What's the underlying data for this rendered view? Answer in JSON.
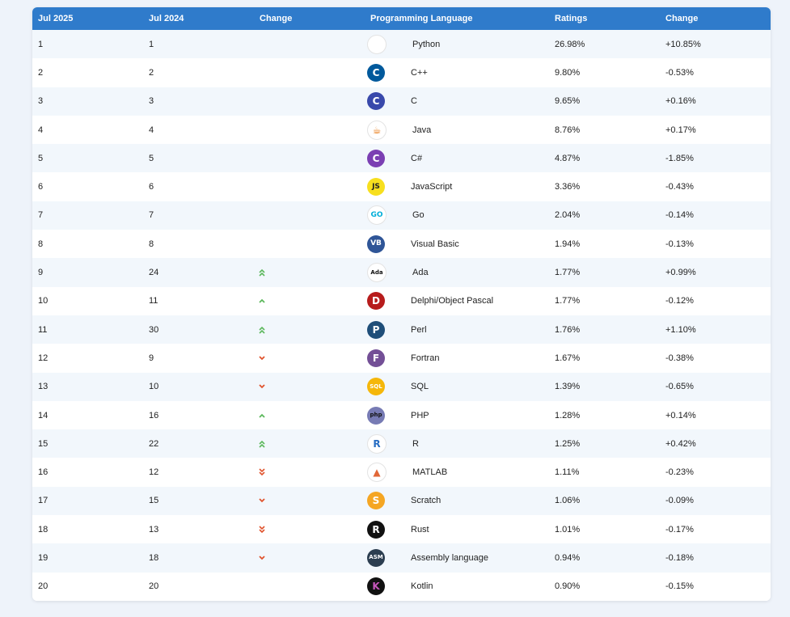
{
  "headers": [
    "Jul 2025",
    "Jul 2024",
    "Change",
    "Programming Language",
    "Ratings",
    "Change"
  ],
  "rows": [
    {
      "rank": "1",
      "prev": "1",
      "trend": "none",
      "lang": "Python",
      "rating": "26.98%",
      "change": "+10.85%",
      "logo": {
        "name": "python-logo-icon",
        "glyph": "",
        "bg": "#ffffff",
        "fg": "#3472a6"
      }
    },
    {
      "rank": "2",
      "prev": "2",
      "trend": "none",
      "lang": "C++",
      "rating": "9.80%",
      "change": "-0.53%",
      "logo": {
        "name": "cplusplus-logo-icon",
        "glyph": "C",
        "bg": "#00599c",
        "fg": "#ffffff"
      }
    },
    {
      "rank": "3",
      "prev": "3",
      "trend": "none",
      "lang": "C",
      "rating": "9.65%",
      "change": "+0.16%",
      "logo": {
        "name": "c-logo-icon",
        "glyph": "C",
        "bg": "#3949ab",
        "fg": "#ffffff"
      }
    },
    {
      "rank": "4",
      "prev": "4",
      "trend": "none",
      "lang": "Java",
      "rating": "8.76%",
      "change": "+0.17%",
      "logo": {
        "name": "java-logo-icon",
        "glyph": "☕",
        "bg": "#ffffff",
        "fg": "#e76f00"
      }
    },
    {
      "rank": "5",
      "prev": "5",
      "trend": "none",
      "lang": "C#",
      "rating": "4.87%",
      "change": "-1.85%",
      "logo": {
        "name": "csharp-logo-icon",
        "glyph": "C",
        "bg": "#7b3fb3",
        "fg": "#ffffff"
      }
    },
    {
      "rank": "6",
      "prev": "6",
      "trend": "none",
      "lang": "JavaScript",
      "rating": "3.36%",
      "change": "-0.43%",
      "logo": {
        "name": "javascript-logo-icon",
        "glyph": "JS",
        "bg": "#f7df1e",
        "fg": "#222222"
      }
    },
    {
      "rank": "7",
      "prev": "7",
      "trend": "none",
      "lang": "Go",
      "rating": "2.04%",
      "change": "-0.14%",
      "logo": {
        "name": "go-logo-icon",
        "glyph": "GO",
        "bg": "#ffffff",
        "fg": "#00add8"
      }
    },
    {
      "rank": "8",
      "prev": "8",
      "trend": "none",
      "lang": "Visual Basic",
      "rating": "1.94%",
      "change": "-0.13%",
      "logo": {
        "name": "visual-basic-logo-icon",
        "glyph": "VB",
        "bg": "#2f5597",
        "fg": "#ffffff"
      }
    },
    {
      "rank": "9",
      "prev": "24",
      "trend": "up2",
      "lang": "Ada",
      "rating": "1.77%",
      "change": "+0.99%",
      "logo": {
        "name": "ada-logo-icon",
        "glyph": "Ada",
        "bg": "#ffffff",
        "fg": "#111111"
      }
    },
    {
      "rank": "10",
      "prev": "11",
      "trend": "up",
      "lang": "Delphi/Object Pascal",
      "rating": "1.77%",
      "change": "-0.12%",
      "logo": {
        "name": "delphi-logo-icon",
        "glyph": "D",
        "bg": "#b71c1c",
        "fg": "#ffffff"
      }
    },
    {
      "rank": "11",
      "prev": "30",
      "trend": "up2",
      "lang": "Perl",
      "rating": "1.76%",
      "change": "+1.10%",
      "logo": {
        "name": "perl-logo-icon",
        "glyph": "P",
        "bg": "#1f4e79",
        "fg": "#ffffff"
      }
    },
    {
      "rank": "12",
      "prev": "9",
      "trend": "down",
      "lang": "Fortran",
      "rating": "1.67%",
      "change": "-0.38%",
      "logo": {
        "name": "fortran-logo-icon",
        "glyph": "F",
        "bg": "#734f96",
        "fg": "#ffffff"
      }
    },
    {
      "rank": "13",
      "prev": "10",
      "trend": "down",
      "lang": "SQL",
      "rating": "1.39%",
      "change": "-0.65%",
      "logo": {
        "name": "sql-logo-icon",
        "glyph": "SQL",
        "bg": "#f5b70a",
        "fg": "#ffffff"
      }
    },
    {
      "rank": "14",
      "prev": "16",
      "trend": "up",
      "lang": "PHP",
      "rating": "1.28%",
      "change": "+0.14%",
      "logo": {
        "name": "php-logo-icon",
        "glyph": "php",
        "bg": "#777bb4",
        "fg": "#111111"
      }
    },
    {
      "rank": "15",
      "prev": "22",
      "trend": "up2",
      "lang": "R",
      "rating": "1.25%",
      "change": "+0.42%",
      "logo": {
        "name": "r-logo-icon",
        "glyph": "R",
        "bg": "#ffffff",
        "fg": "#276dc3"
      }
    },
    {
      "rank": "16",
      "prev": "12",
      "trend": "down2",
      "lang": "MATLAB",
      "rating": "1.11%",
      "change": "-0.23%",
      "logo": {
        "name": "matlab-logo-icon",
        "glyph": "▲",
        "bg": "#ffffff",
        "fg": "#e16737"
      }
    },
    {
      "rank": "17",
      "prev": "15",
      "trend": "down",
      "lang": "Scratch",
      "rating": "1.06%",
      "change": "-0.09%",
      "logo": {
        "name": "scratch-logo-icon",
        "glyph": "S",
        "bg": "#f5a623",
        "fg": "#ffffff"
      }
    },
    {
      "rank": "18",
      "prev": "13",
      "trend": "down2",
      "lang": "Rust",
      "rating": "1.01%",
      "change": "-0.17%",
      "logo": {
        "name": "rust-logo-icon",
        "glyph": "R",
        "bg": "#111111",
        "fg": "#ffffff"
      }
    },
    {
      "rank": "19",
      "prev": "18",
      "trend": "down",
      "lang": "Assembly language",
      "rating": "0.94%",
      "change": "-0.18%",
      "logo": {
        "name": "assembly-logo-icon",
        "glyph": "ASM",
        "bg": "#2c3e50",
        "fg": "#ffffff"
      }
    },
    {
      "rank": "20",
      "prev": "20",
      "trend": "none",
      "lang": "Kotlin",
      "rating": "0.90%",
      "change": "-0.15%",
      "logo": {
        "name": "kotlin-logo-icon",
        "glyph": "K",
        "bg": "#111111",
        "fg": "#c757bc"
      }
    }
  ],
  "colors": {
    "header_bg": "#2f7bcb",
    "up": "#5cb85c",
    "down": "#e0532d"
  }
}
